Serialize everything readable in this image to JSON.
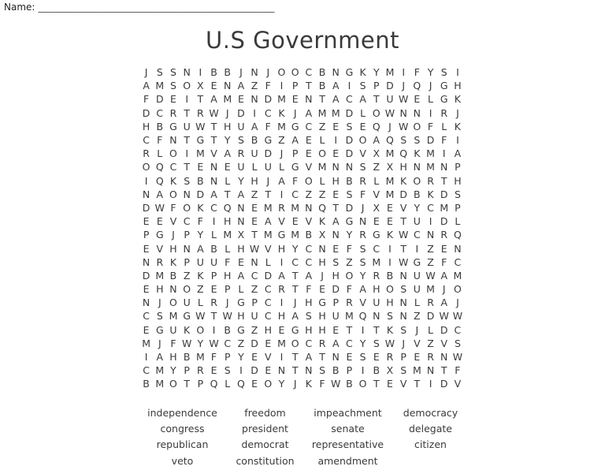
{
  "page": {
    "name_label": "Name:",
    "name_line": "__________________________________________________",
    "title": "U.S Government"
  },
  "colors": {
    "text": "#3a3a3a",
    "background": "#ffffff"
  },
  "grid": {
    "rows": 24,
    "cols": 24,
    "letters": [
      "JSSNIBBJNJOOCBNGKYMIFYSI",
      "AMSOXENAZFIPTBAISPDJQJGH",
      "FDEITAMENDMENTACATUWELGK",
      "DCRTRWJDICKJAMMDLOWNNIRJ",
      "HBGUWTHUAFMGCZESEQJWOFLK",
      "CFNTGTYSBGZAELIDOAQSSDFI",
      "RLOIMVARUDJPEOEDVXMQKMIA",
      "OQCTENEULULGVMNNSZXHNMNP",
      "IQKSBNLYHJAFOLHBRLMKORTH",
      "NAONDATAZTICZZESFVMDBKDS",
      "DWFOKCQNEMRMNQTDJXEVYCMP",
      "EEVCFIHNEAVEVKAGNEETUIDL",
      "PGJPYLMXTMGMBXNYRGKWCNRQ",
      "EVHNABLHWVHYCNEFSCITIZEN",
      "NRKPUUFENLICCHSZSMIWGZFC",
      "DMBZKPHACDATAJHOYRBNUWAM",
      "EHNOZEPLZCRTFEDFAHOSUMJO",
      "NJOULRJGPCIJHGPRVUHNLRAJ",
      "CSMGWTWHUCHASHUMQNSNZDWW",
      "EGUKOIBGZHEGHHETITKSJLDC",
      "MJFWYWCZDEMOCRACYSWJVZVS",
      "IAHBMFPYEVITATNESERPERNW",
      "CMYPRESIDENTNSBPIBXSMNTF",
      "BMOTPQLQEOYJKFWBOTEVTIDV"
    ]
  },
  "word_bank": {
    "rows": [
      [
        "independence",
        "freedom",
        "impeachment",
        "democracy"
      ],
      [
        "congress",
        "president",
        "senate",
        "delegate"
      ],
      [
        "republican",
        "democrat",
        "representative",
        "citizen"
      ],
      [
        "veto",
        "constitution",
        "amendment",
        ""
      ]
    ]
  }
}
